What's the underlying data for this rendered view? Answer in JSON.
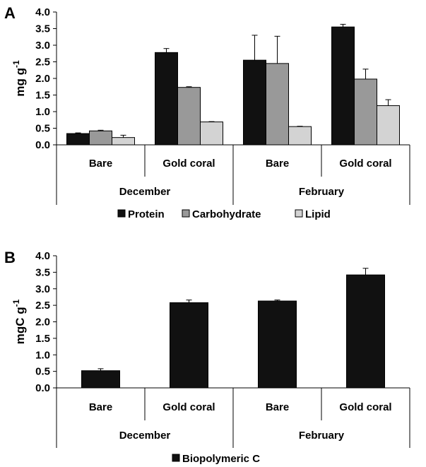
{
  "chart_data": [
    {
      "type": "bar",
      "panel_label": "A",
      "ylabel": "mg g",
      "ylabel_superscript": "-1",
      "ylim": [
        0,
        4.0
      ],
      "yticks": [
        "0.0",
        "0.5",
        "1.0",
        "1.5",
        "2.0",
        "2.5",
        "3.0",
        "3.5",
        "4.0"
      ],
      "categories": [
        "Bare",
        "Gold coral",
        "Bare",
        "Gold coral"
      ],
      "groups": [
        {
          "label": "December",
          "span": [
            0,
            1
          ]
        },
        {
          "label": "February",
          "span": [
            2,
            3
          ]
        }
      ],
      "series": [
        {
          "name": "Protein",
          "color": "#111111",
          "values": [
            0.34,
            2.78,
            2.55,
            3.55
          ],
          "errors": [
            0.02,
            0.12,
            0.75,
            0.08
          ]
        },
        {
          "name": "Carbohydrate",
          "color": "#999999",
          "values": [
            0.42,
            1.73,
            2.45,
            1.98
          ],
          "errors": [
            0.02,
            0.02,
            0.82,
            0.3
          ]
        },
        {
          "name": "Lipid",
          "color": "#d3d3d3",
          "values": [
            0.22,
            0.69,
            0.55,
            1.18
          ],
          "errors": [
            0.07,
            0.01,
            0.01,
            0.18
          ]
        }
      ],
      "legend_placement": "bottom"
    },
    {
      "type": "bar",
      "panel_label": "B",
      "ylabel": "mgC g",
      "ylabel_superscript": "-1",
      "ylim": [
        0,
        4.0
      ],
      "yticks": [
        "0.0",
        "0.5",
        "1.0",
        "1.5",
        "2.0",
        "2.5",
        "3.0",
        "3.5",
        "4.0"
      ],
      "categories": [
        "Bare",
        "Gold coral",
        "Bare",
        "Gold coral"
      ],
      "groups": [
        {
          "label": "December",
          "span": [
            0,
            1
          ]
        },
        {
          "label": "February",
          "span": [
            2,
            3
          ]
        }
      ],
      "series": [
        {
          "name": "Biopolymeric C",
          "color": "#111111",
          "values": [
            0.52,
            2.58,
            2.63,
            3.42
          ],
          "errors": [
            0.06,
            0.08,
            0.03,
            0.2
          ]
        }
      ],
      "legend_placement": "bottom"
    }
  ]
}
